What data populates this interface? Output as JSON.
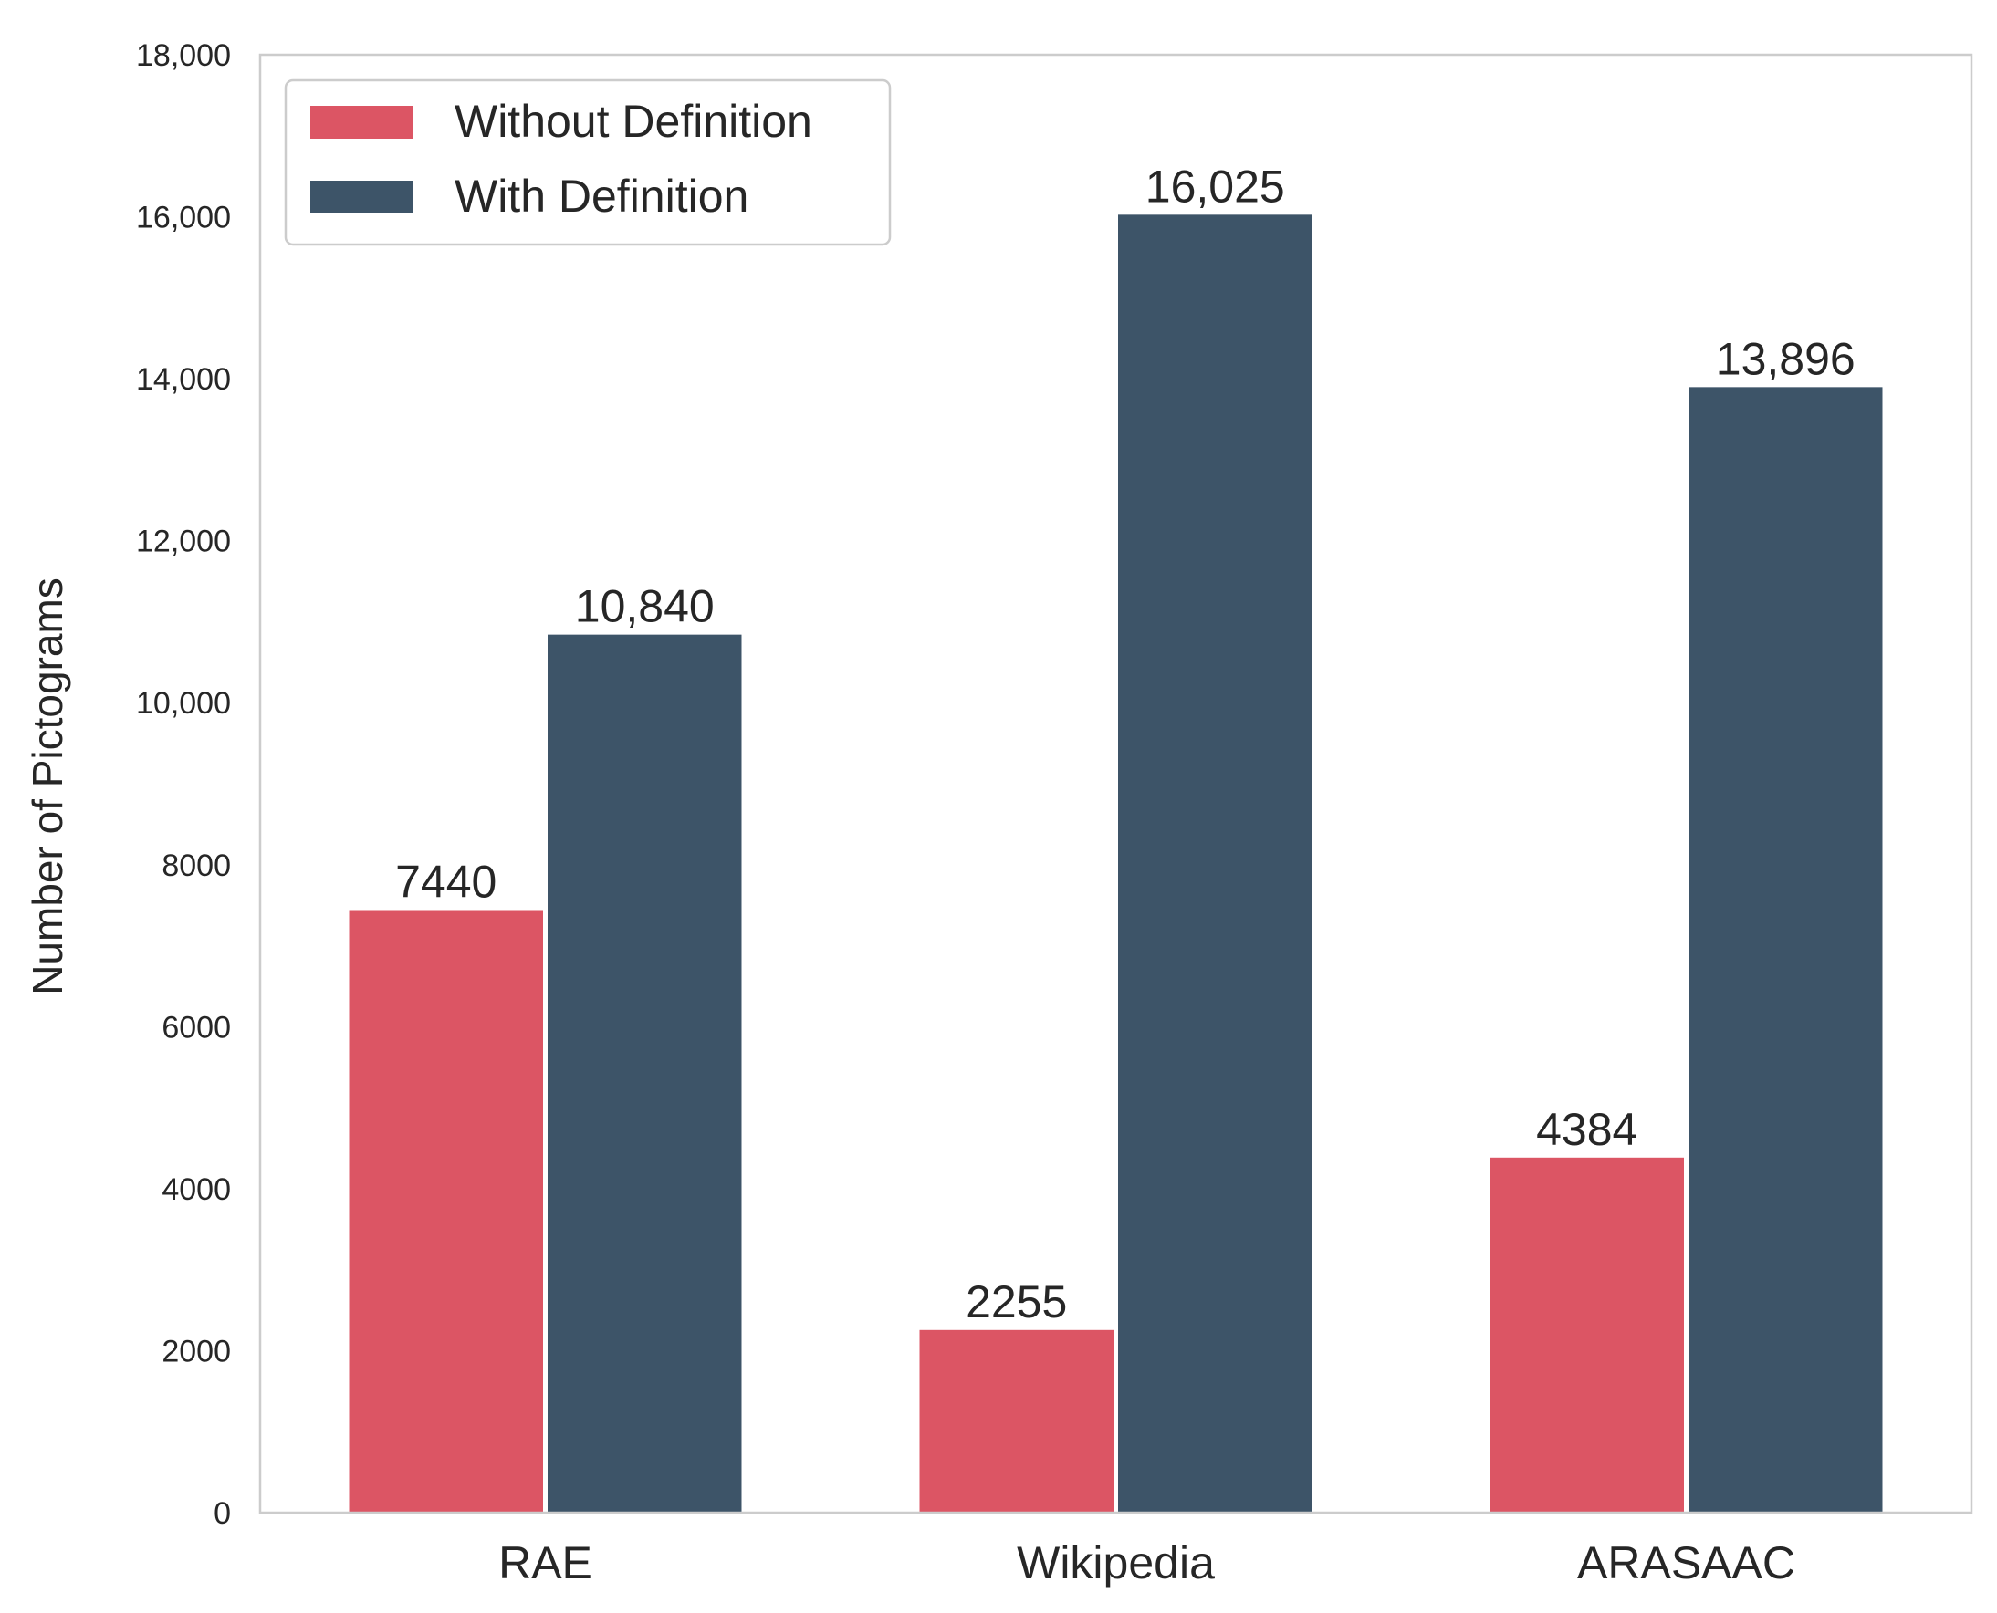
{
  "chart_data": {
    "type": "bar",
    "title": "",
    "xlabel": "",
    "ylabel": "Number of Pictograms",
    "ylim": [
      0,
      18000
    ],
    "yticks": [
      0,
      2000,
      4000,
      6000,
      8000,
      10000,
      12000,
      14000,
      16000,
      18000
    ],
    "ytick_labels": [
      "0",
      "2000",
      "4000",
      "6000",
      "8000",
      "10,000",
      "12,000",
      "14,000",
      "16,000",
      "18,000"
    ],
    "categories": [
      "RAE",
      "Wikipedia",
      "ARASAAC"
    ],
    "series": [
      {
        "name": "Without Definition",
        "color": "#dc5564",
        "values": [
          7440,
          2255,
          4384
        ],
        "labels": [
          "7440",
          "2255",
          "4384"
        ]
      },
      {
        "name": "With Definition",
        "color": "#3d5468",
        "values": [
          10840,
          16025,
          13896
        ],
        "labels": [
          "10,840",
          "16,025",
          "13,896"
        ]
      }
    ],
    "grid": false,
    "legend_position": "top-left",
    "axes_color": "#cccccc",
    "background": "#ffffff"
  }
}
